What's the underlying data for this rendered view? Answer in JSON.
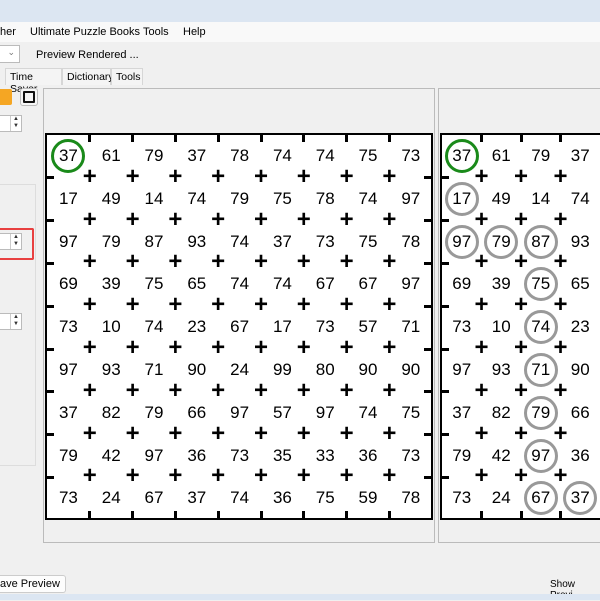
{
  "menu": [
    "her",
    "Ultimate Puzzle Books",
    "Tools",
    "Help"
  ],
  "toolbar": {
    "preview_label": "Preview Rendered ..."
  },
  "tabs": [
    "Time Saver",
    "Dictionary",
    "Tools"
  ],
  "icons": {
    "open": "folder-icon",
    "save": "floppy-disk-icon"
  },
  "grid": [
    [
      "37",
      "61",
      "79",
      "37",
      "78",
      "74",
      "74",
      "75",
      "73"
    ],
    [
      "17",
      "49",
      "14",
      "74",
      "79",
      "75",
      "78",
      "74",
      "97"
    ],
    [
      "97",
      "79",
      "87",
      "93",
      "74",
      "37",
      "73",
      "75",
      "78"
    ],
    [
      "69",
      "39",
      "75",
      "65",
      "74",
      "74",
      "67",
      "67",
      "97"
    ],
    [
      "73",
      "10",
      "74",
      "23",
      "67",
      "17",
      "73",
      "57",
      "71"
    ],
    [
      "97",
      "93",
      "71",
      "90",
      "24",
      "99",
      "80",
      "90",
      "90"
    ],
    [
      "37",
      "82",
      "79",
      "66",
      "97",
      "57",
      "97",
      "74",
      "75"
    ],
    [
      "79",
      "42",
      "97",
      "36",
      "73",
      "35",
      "33",
      "36",
      "73"
    ],
    [
      "73",
      "24",
      "67",
      "37",
      "74",
      "36",
      "75",
      "59",
      "78"
    ]
  ],
  "start_cell": [
    0,
    0
  ],
  "solution_path": [
    [
      1,
      0
    ],
    [
      2,
      0
    ],
    [
      2,
      1
    ],
    [
      2,
      2
    ],
    [
      3,
      2
    ],
    [
      4,
      2
    ],
    [
      5,
      2
    ],
    [
      6,
      2
    ],
    [
      7,
      2
    ],
    [
      8,
      2
    ],
    [
      8,
      3
    ]
  ],
  "colors": {
    "start_circle": "#1a8a1a",
    "path_circle": "#999999",
    "highlight": "#e84040"
  },
  "bottom": {
    "save_preview": "ave Preview",
    "show_preview": "Show Previ"
  }
}
